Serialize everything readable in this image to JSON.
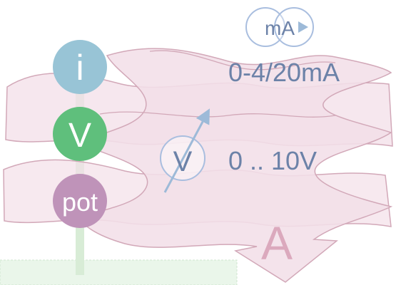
{
  "colors": {
    "wave_fill": "#f3dfe8",
    "wave_stroke": "#d2a8b8",
    "rail": "#d8ecd6",
    "bottom_strip": "#eaf6ea",
    "label_text": "#6c82a8",
    "big_letter": "#dba9bd",
    "current_circle": "#98c4d6",
    "voltage_circle": "#5fbf7c",
    "pot_circle": "#bf93b9",
    "arrow": "#9dbad8"
  },
  "inputs": [
    {
      "id": "current",
      "label": "i"
    },
    {
      "id": "voltage",
      "label": "V"
    },
    {
      "id": "pot",
      "label": "pot"
    }
  ],
  "meters": {
    "milliamp_symbol": "mA",
    "milliamp_range": "0-4/20mA",
    "volt_symbol": "V",
    "volt_range": "0 .. 10V"
  },
  "output_letter": "A"
}
